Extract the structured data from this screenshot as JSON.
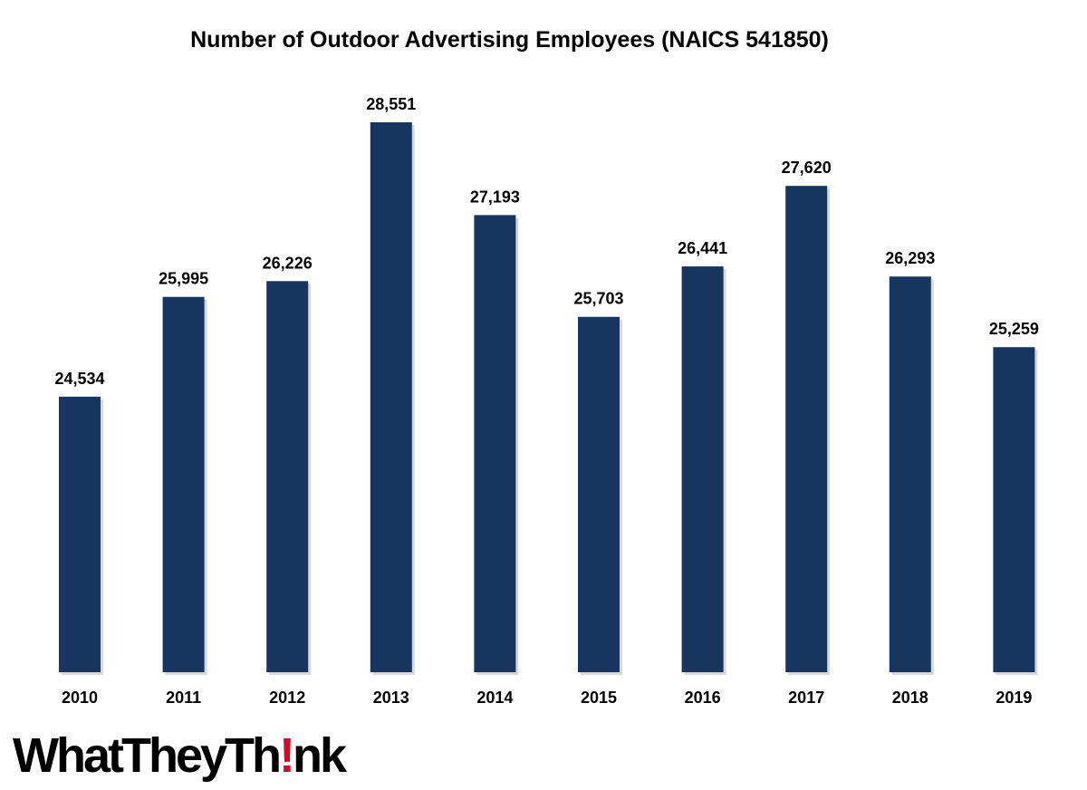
{
  "chart_data": {
    "type": "bar",
    "title": "Number of Outdoor Advertising Employees (NAICS 541850)",
    "categories": [
      "2010",
      "2011",
      "2012",
      "2013",
      "2014",
      "2015",
      "2016",
      "2017",
      "2018",
      "2019"
    ],
    "values": [
      24534,
      25995,
      26226,
      28551,
      27193,
      25703,
      26441,
      27620,
      26293,
      25259
    ],
    "value_labels": [
      "24,534",
      "25,995",
      "26,226",
      "28,551",
      "27,193",
      "25,703",
      "26,441",
      "27,620",
      "26,293",
      "25,259"
    ],
    "xlabel": "",
    "ylabel": "",
    "ylim": [
      20500,
      28551
    ],
    "grid": false,
    "legend": "none",
    "colors": {
      "bar": "#17355e"
    }
  },
  "logo": {
    "text_before": "WhatTheyTh",
    "exclaim": "!",
    "text_after": "nk",
    "accent": "#c8102e"
  }
}
